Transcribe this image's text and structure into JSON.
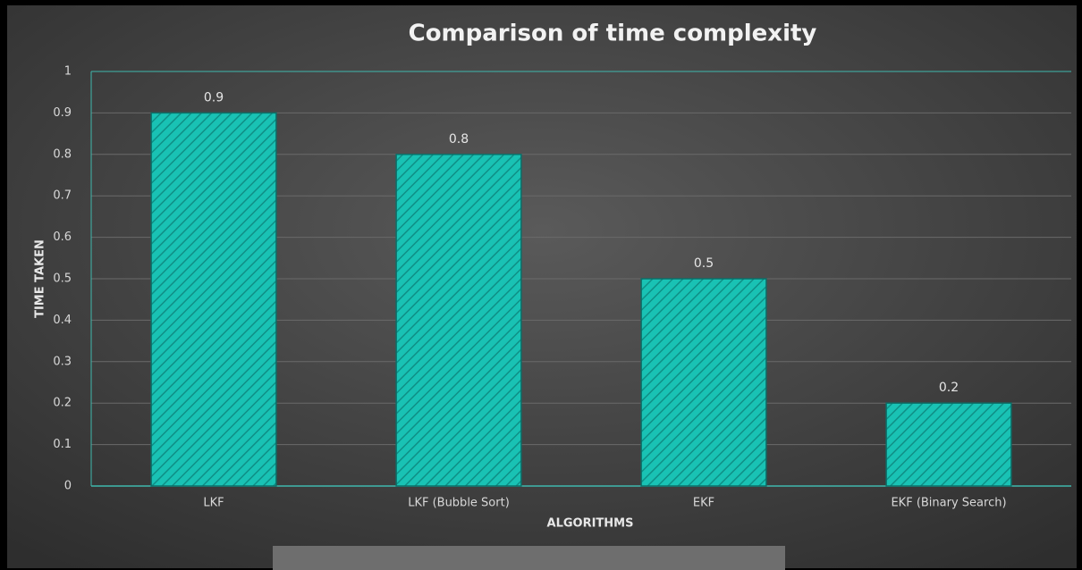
{
  "chart_data": {
    "type": "bar",
    "title": "Comparison of time complexity",
    "x_label": "ALGORITHMS",
    "y_label": "TIME TAKEN",
    "categories": [
      "LKF",
      "LKF (Bubble Sort)",
      "EKF",
      "EKF (Binary Search)"
    ],
    "values": [
      0.9,
      0.8,
      0.5,
      0.2
    ],
    "color": "#19c2b4",
    "ylim": [
      0,
      1
    ],
    "yticks": [
      0,
      0.1,
      0.2,
      0.3,
      0.4,
      0.5,
      0.6,
      0.7,
      0.8,
      0.9,
      1
    ],
    "grid": true
  }
}
